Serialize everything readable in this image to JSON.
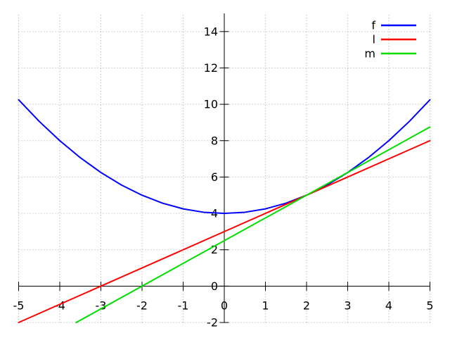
{
  "chart_data": {
    "type": "line",
    "title": "",
    "xlabel": "",
    "ylabel": "",
    "xlim": [
      -5,
      5
    ],
    "ylim": [
      -2,
      15
    ],
    "xticks": [
      -5,
      -4,
      -3,
      -2,
      -1,
      0,
      1,
      2,
      3,
      4,
      5
    ],
    "yticks": [
      -2,
      0,
      2,
      4,
      6,
      8,
      10,
      12,
      14
    ],
    "grid": "dotted",
    "axes_style": "zero-axes",
    "legend_position": "top-right-inside",
    "series": [
      {
        "name": "f",
        "color": "#0000ff",
        "points": [
          [
            -5,
            10.25
          ],
          [
            -4.5,
            9.0625
          ],
          [
            -4,
            8
          ],
          [
            -3.5,
            7.0625
          ],
          [
            -3,
            6.25
          ],
          [
            -2.5,
            5.5625
          ],
          [
            -2,
            5
          ],
          [
            -1.5,
            4.5625
          ],
          [
            -1,
            4.25
          ],
          [
            -0.5,
            4.0625
          ],
          [
            0,
            4
          ],
          [
            0.5,
            4.0625
          ],
          [
            1,
            4.25
          ],
          [
            1.5,
            4.5625
          ],
          [
            2,
            5
          ],
          [
            2.5,
            5.5625
          ],
          [
            3,
            6.25
          ],
          [
            3.5,
            7.0625
          ],
          [
            4,
            8
          ],
          [
            4.5,
            9.0625
          ],
          [
            5,
            10.25
          ]
        ]
      },
      {
        "name": "l",
        "color": "#ff0000",
        "points": [
          [
            -5,
            -2
          ],
          [
            5,
            8
          ]
        ]
      },
      {
        "name": "m",
        "color": "#00dd00",
        "points": [
          [
            -3.6,
            -2
          ],
          [
            5,
            8.75
          ]
        ]
      }
    ]
  },
  "legend": {
    "items": [
      {
        "label": "f",
        "color": "#0000ff"
      },
      {
        "label": "l",
        "color": "#ff0000"
      },
      {
        "label": "m",
        "color": "#00dd00"
      }
    ]
  },
  "colors": {
    "background": "#ffffff",
    "axis": "#000000",
    "grid": "#aaaaaa",
    "text": "#000000"
  }
}
